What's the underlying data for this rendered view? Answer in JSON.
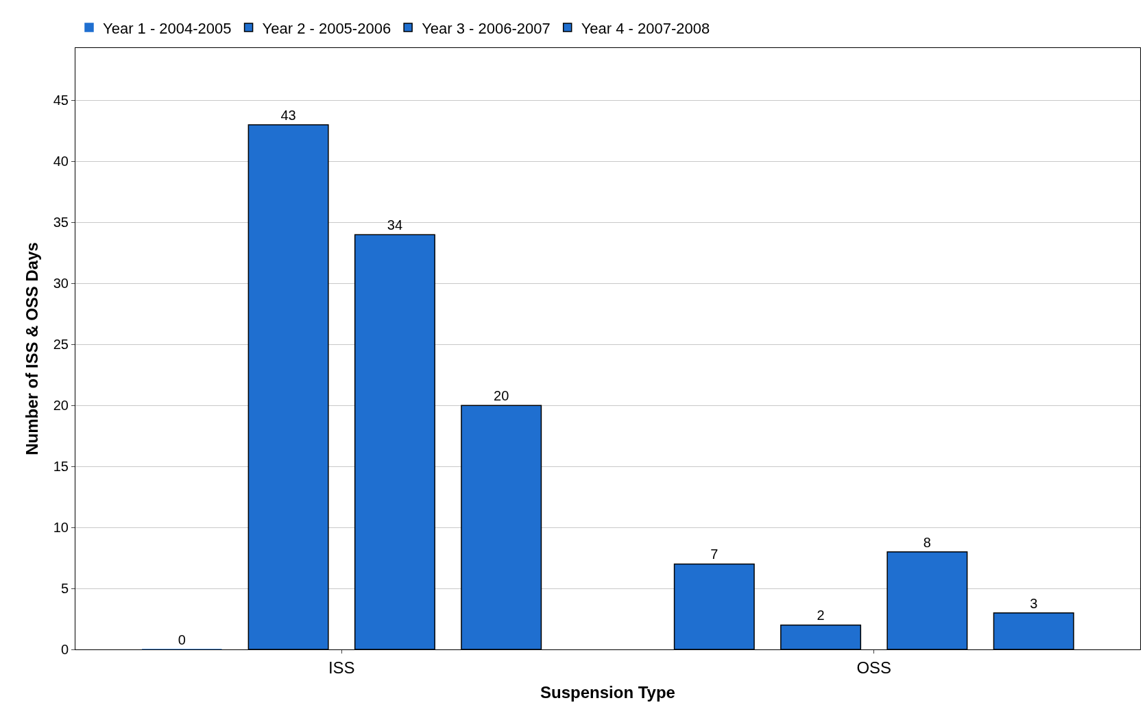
{
  "chart_data": {
    "type": "bar",
    "xlabel": "Suspension Type",
    "ylabel": "Number of ISS & OSS Days",
    "categories": [
      "ISS",
      "OSS"
    ],
    "series": [
      {
        "name": "Year 1 - 2004-2005",
        "color": "#1f6fd0",
        "values": [
          0,
          7
        ]
      },
      {
        "name": "Year 2 - 2005-2006",
        "color": "#1f6fd0",
        "values": [
          43,
          2
        ]
      },
      {
        "name": "Year 3 - 2006-2007",
        "color": "#1f6fd0",
        "values": [
          34,
          8
        ]
      },
      {
        "name": "Year 4 - 2007-2008",
        "color": "#1f6fd0",
        "values": [
          20,
          3
        ]
      }
    ],
    "ylim": [
      0,
      49.3
    ],
    "yticks": [
      0,
      5,
      10,
      15,
      20,
      25,
      30,
      35,
      40,
      45
    ],
    "grid": "y",
    "legend": "top",
    "data_labels": true
  }
}
